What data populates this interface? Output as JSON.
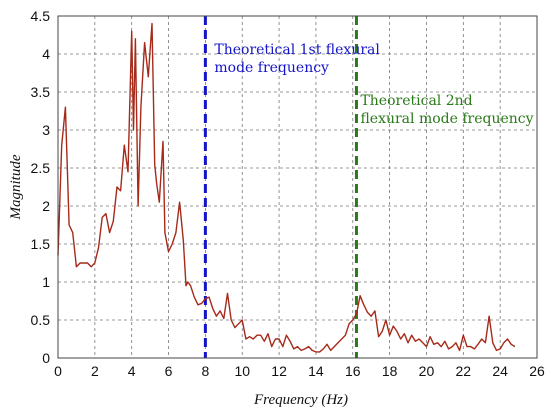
{
  "chart_data": {
    "type": "line",
    "title": "",
    "xlabel": "Frequency (Hz)",
    "ylabel": "Magnitude",
    "xlim": [
      0,
      26
    ],
    "ylim": [
      0,
      4.5
    ],
    "x_ticks": [
      "0",
      "2",
      "4",
      "6",
      "8",
      "10",
      "12",
      "14",
      "16",
      "18",
      "20",
      "22",
      "24",
      "26"
    ],
    "y_ticks": [
      "0",
      "0.5",
      "1",
      "1.5",
      "2",
      "2.5",
      "3",
      "3.5",
      "4",
      "4.5"
    ],
    "grid": true,
    "line_color": "#a52a1a",
    "series": [
      {
        "x": [
          0,
          0.2,
          0.4,
          0.6,
          0.8,
          1.0,
          1.2,
          1.4,
          1.6,
          1.8,
          2.0,
          2.2,
          2.4,
          2.6,
          2.8,
          3.0,
          3.2,
          3.4,
          3.6,
          3.8,
          4.0,
          4.1,
          4.2,
          4.35,
          4.5,
          4.7,
          4.9,
          5.0,
          5.1,
          5.25,
          5.35,
          5.5,
          5.7,
          5.8,
          6.0,
          6.2,
          6.4,
          6.6,
          6.8,
          6.95,
          7.05,
          7.2,
          7.4,
          7.6,
          7.8,
          8.0,
          8.2,
          8.4,
          8.6,
          8.8,
          9.0,
          9.2,
          9.4,
          9.6,
          9.8,
          10.0,
          10.2,
          10.4,
          10.6,
          10.8,
          11.0,
          11.2,
          11.4,
          11.6,
          11.8,
          12.0,
          12.2,
          12.4,
          12.6,
          12.8,
          13.0,
          13.2,
          13.4,
          13.6,
          13.8,
          14.0,
          14.2,
          14.4,
          14.6,
          14.8,
          15.0,
          15.2,
          15.4,
          15.6,
          15.8,
          16.0,
          16.2,
          16.4,
          16.6,
          16.8,
          17.0,
          17.2,
          17.4,
          17.6,
          17.8,
          18.0,
          18.2,
          18.4,
          18.6,
          18.8,
          19.0,
          19.2,
          19.4,
          19.6,
          19.8,
          20.0,
          20.2,
          20.4,
          20.6,
          20.8,
          21.0,
          21.2,
          21.4,
          21.6,
          21.8,
          22.0,
          22.2,
          22.4,
          22.6,
          22.8,
          23.0,
          23.2,
          23.4,
          23.6,
          23.8,
          24.0,
          24.2,
          24.4,
          24.6,
          24.8
        ],
        "y": [
          1.35,
          2.8,
          3.3,
          1.75,
          1.65,
          1.2,
          1.25,
          1.25,
          1.25,
          1.2,
          1.25,
          1.45,
          1.85,
          1.9,
          1.65,
          1.8,
          2.25,
          2.2,
          2.8,
          2.45,
          4.3,
          3.0,
          4.2,
          2.0,
          3.3,
          4.15,
          3.7,
          4.05,
          4.4,
          2.55,
          2.3,
          2.05,
          2.85,
          1.65,
          1.4,
          1.5,
          1.65,
          2.05,
          1.55,
          0.95,
          1.0,
          0.95,
          0.8,
          0.7,
          0.72,
          0.78,
          0.8,
          0.65,
          0.55,
          0.62,
          0.52,
          0.85,
          0.5,
          0.4,
          0.45,
          0.5,
          0.25,
          0.28,
          0.25,
          0.3,
          0.3,
          0.22,
          0.32,
          0.15,
          0.25,
          0.25,
          0.15,
          0.3,
          0.22,
          0.12,
          0.15,
          0.1,
          0.12,
          0.15,
          0.1,
          0.08,
          0.08,
          0.12,
          0.18,
          0.1,
          0.15,
          0.2,
          0.25,
          0.3,
          0.45,
          0.5,
          0.58,
          0.82,
          0.7,
          0.6,
          0.55,
          0.62,
          0.28,
          0.35,
          0.5,
          0.3,
          0.42,
          0.35,
          0.25,
          0.32,
          0.2,
          0.3,
          0.22,
          0.25,
          0.2,
          0.15,
          0.28,
          0.18,
          0.2,
          0.15,
          0.22,
          0.12,
          0.15,
          0.2,
          0.1,
          0.3,
          0.15,
          0.15,
          0.12,
          0.18,
          0.25,
          0.2,
          0.55,
          0.2,
          0.1,
          0.12,
          0.2,
          0.25,
          0.18,
          0.15
        ]
      }
    ],
    "annotations": [
      {
        "x": 8.0,
        "color": "#1414c8",
        "text_lines": [
          "Theoretical 1st flexural",
          "mode frequency"
        ]
      },
      {
        "x": 16.2,
        "color": "#2a7a1a",
        "text_lines": [
          "Theoretical 2nd",
          "flexural mode frequency"
        ]
      }
    ]
  }
}
